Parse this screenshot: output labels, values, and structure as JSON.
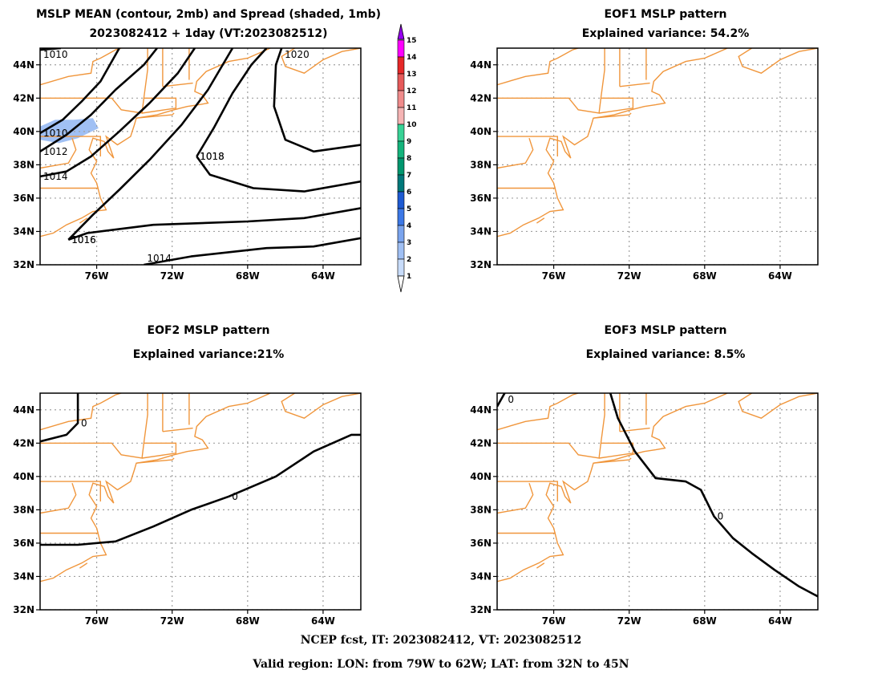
{
  "panels": [
    {
      "id": "p1",
      "title1": "MSLP MEAN (contour, 2mb) and Spread (shaded, 1mb)",
      "title2": "2023082412 + 1day (VT:2023082512)",
      "contours": [
        {
          "label": "1010",
          "pts": [
            [
              -79,
              44.9
            ],
            [
              -77.9,
              45
            ]
          ]
        },
        {
          "label": "1010",
          "pts": [
            [
              -79,
              39.9
            ],
            [
              -77.8,
              40.7
            ],
            [
              -76.8,
              41.8
            ],
            [
              -75.8,
              43
            ],
            [
              -74.8,
              45
            ]
          ]
        },
        {
          "label": "1012",
          "pts": [
            [
              -79,
              38.8
            ],
            [
              -77.6,
              39.8
            ],
            [
              -76.3,
              41
            ],
            [
              -75,
              42.5
            ],
            [
              -73.5,
              44
            ],
            [
              -72.8,
              45
            ]
          ]
        },
        {
          "label": "1014",
          "pts": [
            [
              -79,
              37.3
            ],
            [
              -77.6,
              37.6
            ],
            [
              -76.3,
              38.5
            ],
            [
              -74.8,
              40
            ],
            [
              -73.2,
              41.7
            ],
            [
              -71.7,
              43.5
            ],
            [
              -70.8,
              45
            ]
          ]
        },
        {
          "label": "1016",
          "pts": [
            [
              -77.5,
              33.5
            ],
            [
              -76.2,
              35
            ],
            [
              -74.8,
              36.5
            ],
            [
              -73.2,
              38.3
            ],
            [
              -71.5,
              40.4
            ],
            [
              -70.1,
              42.5
            ],
            [
              -68.8,
              45
            ]
          ]
        },
        {
          "label": "1018",
          "pts": [
            [
              -70.7,
              38.5
            ],
            [
              -69.8,
              40.2
            ],
            [
              -68.8,
              42.3
            ],
            [
              -67.8,
              44
            ],
            [
              -67,
              45
            ]
          ]
        },
        {
          "label": "1020",
          "pts": [
            [
              -66.2,
              45
            ],
            [
              -66.5,
              44
            ],
            [
              -66.6,
              41.5
            ],
            [
              -66,
              39.5
            ],
            [
              -64.5,
              38.8
            ],
            [
              -62,
              39.2
            ]
          ]
        },
        {
          "label": "1018",
          "pts": [
            [
              -70.7,
              38.5
            ],
            [
              -70,
              37.4
            ],
            [
              -67.7,
              36.6
            ],
            [
              -65,
              36.4
            ],
            [
              -62,
              37
            ]
          ]
        },
        {
          "label": "1016",
          "pts": [
            [
              -77.5,
              33.5
            ],
            [
              -76.5,
              33.9
            ],
            [
              -73,
              34.4
            ],
            [
              -68,
              34.6
            ],
            [
              -65,
              34.8
            ],
            [
              -62,
              35.4
            ]
          ]
        },
        {
          "label": "1014",
          "pts": [
            [
              -73.5,
              32
            ],
            [
              -71,
              32.5
            ],
            [
              -67,
              33
            ],
            [
              -64.5,
              33.1
            ],
            [
              -62,
              33.6
            ]
          ]
        }
      ],
      "shading": [
        [
          -79,
          40.3
        ],
        [
          -78.2,
          40.7
        ],
        [
          -77.2,
          40.7
        ],
        [
          -76.2,
          40.8
        ],
        [
          -75.9,
          40.2
        ],
        [
          -77,
          39.6
        ],
        [
          -78,
          39.3
        ],
        [
          -79,
          39.5
        ]
      ]
    },
    {
      "id": "p2",
      "title1": "EOF1 MSLP pattern",
      "title2": "Explained variance: 54.2%",
      "contours": []
    },
    {
      "id": "p3",
      "title1": "EOF2 MSLP pattern",
      "title2": "Explained variance:21%",
      "contours": [
        {
          "label": "0",
          "pts": [
            [
              -79,
              35.9
            ],
            [
              -77,
              35.9
            ],
            [
              -75,
              36.1
            ],
            [
              -73,
              37
            ],
            [
              -71,
              38
            ],
            [
              -69,
              38.8
            ],
            [
              -66.5,
              40
            ],
            [
              -64.5,
              41.5
            ],
            [
              -62.5,
              42.5
            ],
            [
              -62,
              42.5
            ]
          ]
        },
        {
          "label": "0",
          "pts": [
            [
              -79,
              42.1
            ],
            [
              -77.6,
              42.5
            ],
            [
              -77,
              43.2
            ],
            [
              -77,
              45
            ]
          ]
        }
      ]
    },
    {
      "id": "p4",
      "title1": "EOF3 MSLP pattern",
      "title2": "Explained variance: 8.5%",
      "contours": [
        {
          "label": "0",
          "pts": [
            [
              -73,
              45
            ],
            [
              -72.6,
              43.5
            ],
            [
              -71.7,
              41.5
            ],
            [
              -70.6,
              39.9
            ],
            [
              -69,
              39.7
            ],
            [
              -68.2,
              39.2
            ],
            [
              -67.5,
              37.6
            ],
            [
              -66.5,
              36.3
            ],
            [
              -65.5,
              35.4
            ],
            [
              -64.3,
              34.4
            ],
            [
              -63,
              33.4
            ],
            [
              -62,
              32.8
            ]
          ]
        },
        {
          "label": "0",
          "pts": [
            [
              -79,
              44.2
            ],
            [
              -78.6,
              45
            ]
          ]
        }
      ]
    }
  ],
  "axes": {
    "lon_range": [
      -79,
      -62
    ],
    "lat_range": [
      32,
      45
    ],
    "lon_ticks": [
      -76,
      -72,
      -68,
      -64
    ],
    "lon_labels": [
      "76W",
      "72W",
      "68W",
      "64W"
    ],
    "lat_ticks": [
      32,
      34,
      36,
      38,
      40,
      42,
      44
    ],
    "lat_labels": [
      "32N",
      "34N",
      "36N",
      "38N",
      "40N",
      "42N",
      "44N"
    ],
    "grid": "dotted"
  },
  "colorbar": {
    "labels": [
      "1",
      "2",
      "3",
      "4",
      "5",
      "6",
      "7",
      "8",
      "9",
      "10",
      "11",
      "12",
      "13",
      "14",
      "15"
    ],
    "colors": [
      "#c8dcfa",
      "#a0c0f4",
      "#7aa4ee",
      "#3c78e6",
      "#1e5ad2",
      "#00787a",
      "#00966e",
      "#14b47c",
      "#38d296",
      "#f5b4b4",
      "#f08c8c",
      "#e65a5a",
      "#e62828",
      "#ff00ff",
      "#9600f0"
    ]
  },
  "colors": {
    "coast": "#f0963c",
    "contour": "#000000",
    "grid": "#a0a0a0"
  },
  "footer": {
    "line1": "NCEP fcst, IT: 2023082412, VT: 2023082512",
    "line2": "Valid region: LON: from 79W to 62W; LAT: from 32N to 45N"
  }
}
